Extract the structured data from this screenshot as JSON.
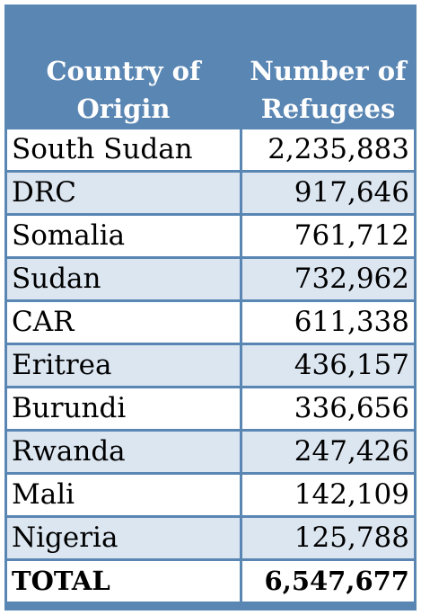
{
  "table": {
    "headers": {
      "country": [
        "Country of",
        "Origin"
      ],
      "refugees": [
        "Number of",
        "Refugees"
      ]
    },
    "rows": [
      {
        "country": "South Sudan",
        "refugees": "2,235,883"
      },
      {
        "country": "DRC",
        "refugees": "917,646"
      },
      {
        "country": "Somalia",
        "refugees": "761,712"
      },
      {
        "country": "Sudan",
        "refugees": "732,962"
      },
      {
        "country": "CAR",
        "refugees": "611,338"
      },
      {
        "country": "Eritrea",
        "refugees": "436,157"
      },
      {
        "country": "Burundi",
        "refugees": "336,656"
      },
      {
        "country": "Rwanda",
        "refugees": "247,426"
      },
      {
        "country": "Mali",
        "refugees": "142,109"
      },
      {
        "country": "Nigeria",
        "refugees": "125,788"
      }
    ],
    "total": {
      "label": "TOTAL",
      "value": "6,547,677"
    },
    "colors": {
      "header": "#5a86b3",
      "band": "#dce6f1",
      "row": "#ffffff",
      "header_text": "#ffffff"
    }
  }
}
